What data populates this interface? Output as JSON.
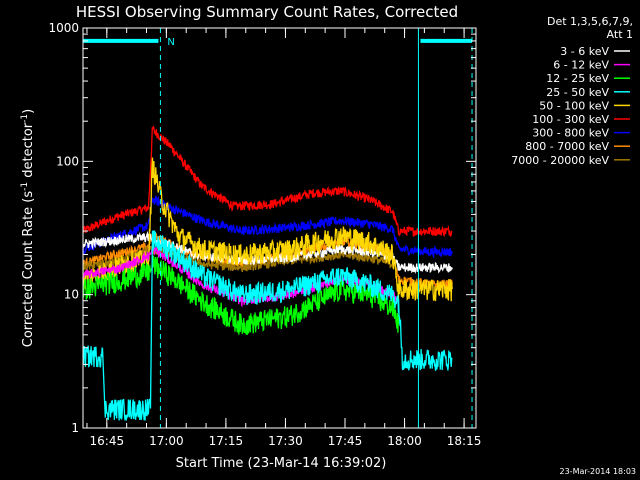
{
  "chart_data": {
    "type": "line",
    "title": "HESSI Observing Summary Count Rates, Corrected",
    "xlabel": "Start Time (23-Mar-14 16:39:02)",
    "ylabel_main": "Corrected Count Rate (s",
    "ylabel_sup1": "-1",
    "ylabel_mid": " detector",
    "ylabel_sup2": "-1",
    "ylabel_end": ")",
    "y_scale": "log",
    "ylim": [
      1,
      1000
    ],
    "xlim_minutes": [
      0,
      99
    ],
    "y_ticks": [
      {
        "value": 1,
        "label": "1"
      },
      {
        "value": 10,
        "label": "10"
      },
      {
        "value": 100,
        "label": "100"
      },
      {
        "value": 1000,
        "label": "1000"
      }
    ],
    "x_ticks": [
      {
        "minute": 6,
        "label": "16:45"
      },
      {
        "minute": 21,
        "label": "17:00"
      },
      {
        "minute": 36,
        "label": "17:15"
      },
      {
        "minute": 51,
        "label": "17:30"
      },
      {
        "minute": 66,
        "label": "17:45"
      },
      {
        "minute": 81,
        "label": "18:00"
      },
      {
        "minute": 96,
        "label": "18:15"
      }
    ],
    "legend_header": [
      "Det 1,3,5,6,7,9,",
      "Att 1"
    ],
    "legend_placement": "right",
    "series": [
      {
        "name": "3 - 6 keV",
        "color": "#ffffff",
        "x": [
          0,
          10,
          17,
          17.5,
          22,
          28,
          40,
          52,
          65,
          72,
          78,
          79.5,
          87,
          93
        ],
        "y": [
          24,
          26,
          27,
          25,
          24,
          20,
          18,
          19,
          22,
          21,
          19,
          16,
          16,
          16
        ]
      },
      {
        "name": "6 - 12 keV",
        "color": "#ff00ff",
        "x": [
          0,
          10,
          17,
          17.5,
          22,
          30,
          40,
          52,
          65,
          72,
          78,
          79.5
        ],
        "y": [
          14,
          16,
          20,
          22,
          18,
          12,
          9,
          10,
          13,
          12,
          10,
          9
        ]
      },
      {
        "name": "12 - 25 keV",
        "color": "#00ff00",
        "x": [
          0,
          10,
          17,
          17.5,
          22,
          30,
          40,
          52,
          65,
          72,
          78,
          79.5
        ],
        "y": [
          11,
          13,
          15,
          17,
          14,
          9,
          6,
          7,
          11,
          10,
          8,
          6
        ]
      },
      {
        "name": "25 - 50 keV",
        "color": "#00ffff",
        "x": [
          0,
          5,
          5.5,
          10,
          17,
          17.5,
          22,
          30,
          40,
          52,
          65,
          72,
          78,
          79.5,
          80.5,
          87,
          93
        ],
        "y": [
          3.5,
          3.5,
          1.4,
          1.4,
          1.4,
          26,
          22,
          14,
          10,
          11,
          14,
          12,
          10,
          9,
          3.3,
          3.3,
          3.3
        ]
      },
      {
        "name": "50 - 100 keV",
        "color": "#ffd700",
        "x": [
          0,
          8,
          12,
          16.5,
          17.5,
          20,
          24,
          30,
          40,
          52,
          65,
          72,
          78,
          79.5,
          87,
          93
        ],
        "y": [
          13,
          16,
          18,
          18,
          95,
          50,
          28,
          22,
          20,
          22,
          28,
          25,
          20,
          11,
          11,
          11
        ]
      },
      {
        "name": "100 - 300 keV",
        "color": "#ff0000",
        "x": [
          0,
          8,
          16.5,
          17.5,
          22,
          30,
          38,
          48,
          58,
          65,
          72,
          78,
          79.5,
          87,
          93
        ],
        "y": [
          30,
          38,
          45,
          175,
          130,
          65,
          46,
          48,
          58,
          60,
          52,
          42,
          30,
          30,
          30
        ]
      },
      {
        "name": "300 - 800 keV",
        "color": "#0000ff",
        "x": [
          0,
          8,
          16.5,
          17.5,
          22,
          30,
          40,
          52,
          65,
          72,
          78,
          79.5,
          87,
          93
        ],
        "y": [
          22,
          27,
          33,
          52,
          45,
          36,
          30,
          32,
          36,
          34,
          31,
          22,
          21,
          21
        ]
      },
      {
        "name": "800 - 7000 keV",
        "color": "#ff8c00",
        "x": [
          0,
          8,
          16.5,
          17.5,
          22,
          30,
          40,
          52,
          65,
          72,
          78,
          79.5,
          87,
          93
        ],
        "y": [
          17,
          20,
          23,
          28,
          24,
          19,
          17,
          20,
          25,
          23,
          20,
          13,
          12,
          12
        ]
      },
      {
        "name": "7000 - 20000 keV",
        "color": "#a07800",
        "x": [
          0,
          10,
          17,
          22,
          30,
          40,
          52,
          65,
          72,
          78
        ],
        "y": [
          16,
          18,
          22,
          20,
          17,
          16,
          18,
          20,
          19,
          17
        ]
      }
    ],
    "annotations": {
      "flag_letter": "N",
      "flag_color": "#00ffff",
      "flag_segments": [
        [
          0,
          19
        ],
        [
          85,
          98
        ]
      ],
      "flag_level": 800,
      "vertical_lines": [
        {
          "minute": 19.5,
          "style": "dashed"
        },
        {
          "minute": 84.5,
          "style": "solid"
        },
        {
          "minute": 98,
          "style": "dashed"
        }
      ]
    },
    "timestamp": "23-Mar-2014 18:03"
  }
}
